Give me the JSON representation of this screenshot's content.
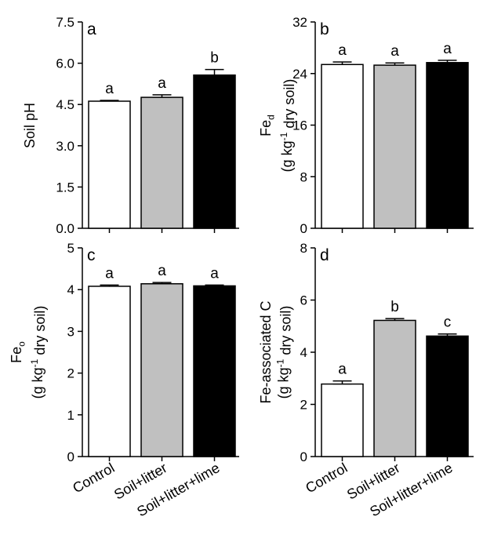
{
  "chart_data": [
    {
      "panel": "a",
      "type": "bar",
      "categories": [
        "Control",
        "Soil+litter",
        "Soil+litter+lime"
      ],
      "values": [
        4.62,
        4.76,
        5.57
      ],
      "errors": [
        0.03,
        0.09,
        0.2
      ],
      "letters": [
        "a",
        "a",
        "b"
      ],
      "colors": [
        "#ffffff",
        "#c0c0c0",
        "#000000"
      ],
      "ylim": [
        0,
        7.5
      ],
      "yticks": [
        "0.0",
        "1.5",
        "3.0",
        "4.5",
        "6.0",
        "7.5"
      ],
      "ylabel_lines": [
        "Soil pH"
      ],
      "ylabel_sub": null
    },
    {
      "panel": "b",
      "type": "bar",
      "categories": [
        "Control",
        "Soil+litter",
        "Soil+litter+lime"
      ],
      "values": [
        25.4,
        25.3,
        25.7
      ],
      "errors": [
        0.4,
        0.35,
        0.35
      ],
      "letters": [
        "a",
        "a",
        "a"
      ],
      "colors": [
        "#ffffff",
        "#c0c0c0",
        "#000000"
      ],
      "ylim": [
        0,
        32
      ],
      "yticks": [
        "0",
        "8",
        "16",
        "24",
        "32"
      ],
      "ylabel_lines": [
        "Fe",
        "(g kg-1 dry soil)"
      ],
      "ylabel_sub": "d"
    },
    {
      "panel": "c",
      "type": "bar",
      "categories": [
        "Control",
        "Soil+litter",
        "Soil+litter+lime"
      ],
      "values": [
        4.08,
        4.14,
        4.09
      ],
      "errors": [
        0.03,
        0.03,
        0.02
      ],
      "letters": [
        "a",
        "a",
        "a"
      ],
      "colors": [
        "#ffffff",
        "#c0c0c0",
        "#000000"
      ],
      "ylim": [
        0,
        5
      ],
      "yticks": [
        "0",
        "1",
        "2",
        "3",
        "4",
        "5"
      ],
      "ylabel_lines": [
        "Fe",
        "(g kg-1 dry soil)"
      ],
      "ylabel_sub": "o"
    },
    {
      "panel": "d",
      "type": "bar",
      "categories": [
        "Control",
        "Soil+litter",
        "Soil+litter+lime"
      ],
      "values": [
        2.78,
        5.22,
        4.62
      ],
      "errors": [
        0.12,
        0.07,
        0.08
      ],
      "letters": [
        "a",
        "b",
        "c"
      ],
      "colors": [
        "#ffffff",
        "#c0c0c0",
        "#000000"
      ],
      "ylim": [
        0,
        8
      ],
      "yticks": [
        "0",
        "2",
        "4",
        "6",
        "8"
      ],
      "ylabel_lines": [
        "Fe-associated C",
        "(g kg-1 dry soil)"
      ],
      "ylabel_sub": null
    }
  ]
}
